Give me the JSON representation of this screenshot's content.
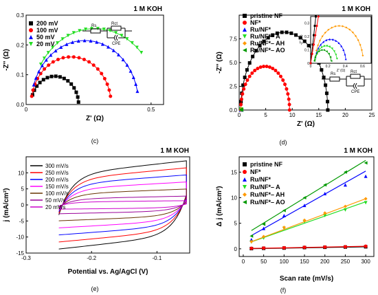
{
  "chart_data": [
    {
      "id": "c",
      "type": "scatter",
      "caption": "(c)",
      "title": "1 M KOH",
      "xlabel": "Z' (Ω)",
      "ylabel": "-Z'' (Ω)",
      "xlim": [
        0,
        0.55
      ],
      "ylim": [
        0,
        0.3
      ],
      "xticks": [
        0,
        0.5
      ],
      "yticks": [
        0.0,
        0.1,
        0.2,
        0.3
      ],
      "xtick_labels": [
        "0",
        "0.5"
      ],
      "ytick_labels": [
        "0.0",
        "0.1",
        "0.2",
        "0.3"
      ],
      "legend_position": "top-left",
      "circuit": {
        "r1": "Rs",
        "r2": "Rct",
        "c": "CPE"
      },
      "series": [
        {
          "name": "200 mV",
          "color": "#000000",
          "marker": "square",
          "arc": {
            "x0": 0.02,
            "r": 0.095,
            "start": 20,
            "end": 175,
            "n": 16,
            "cut": 0.22
          }
        },
        {
          "name": "100 mV",
          "color": "#ff0000",
          "marker": "circle",
          "arc": {
            "x0": 0.02,
            "r": 0.16,
            "start": 10,
            "end": 170,
            "n": 22,
            "cut": 0.4
          }
        },
        {
          "name": "50 mV",
          "color": "#0000ff",
          "marker": "triangle-up",
          "arc": {
            "x0": 0.02,
            "r": 0.215,
            "start": 18,
            "end": 168,
            "n": 24,
            "cut": 0.45
          }
        },
        {
          "name": "20 mV",
          "color": "#22dd22",
          "marker": "triangle-down",
          "arc": {
            "x0": 0.02,
            "r": 0.255,
            "start": 32,
            "end": 170,
            "n": 26,
            "cut": 0.47
          }
        }
      ]
    },
    {
      "id": "d",
      "type": "scatter",
      "caption": "(d)",
      "title": "1 M KOH",
      "xlabel": "Z' (Ω)",
      "ylabel": "-Z'' (Ω)",
      "xlim": [
        0,
        25
      ],
      "ylim": [
        0,
        10
      ],
      "xticks": [
        0,
        5,
        10,
        15,
        20,
        25
      ],
      "yticks": [
        0.0,
        2.5,
        5.0,
        7.5
      ],
      "xtick_labels": [
        "0",
        "5",
        "10",
        "15",
        "20",
        "25"
      ],
      "ytick_labels": [
        "0.0",
        "2.5",
        "5.0",
        "7.5"
      ],
      "legend_position": "top-left",
      "circuit": {
        "r1": "Rs",
        "r2": "Rct",
        "c": "CPE"
      },
      "series": [
        {
          "name": "pristine NF",
          "color": "#000000",
          "marker": "square",
          "arc": {
            "x0": 0.3,
            "r": 8.2,
            "start": 0,
            "end": 180,
            "n": 30
          }
        },
        {
          "name": "NF*",
          "color": "#ff0000",
          "marker": "circle",
          "arc": {
            "x0": 0.3,
            "r": 4.6,
            "start": 0,
            "end": 180,
            "n": 26
          }
        },
        {
          "name": "Ru/NF*",
          "color": "#0000ff",
          "marker": "triangle-up",
          "arc": {
            "x0": 0.3,
            "r": 0.1,
            "start": 0,
            "end": 180,
            "n": 4
          }
        },
        {
          "name": "Ru/NF*– A",
          "color": "#22dd22",
          "marker": "triangle-down",
          "arc": {
            "x0": 0.3,
            "r": 0.1,
            "start": 0,
            "end": 180,
            "n": 4
          }
        },
        {
          "name": "Ru/NF*– AH",
          "color": "#ff9900",
          "marker": "diamond",
          "arc": {
            "x0": 0.3,
            "r": 0.12,
            "start": 0,
            "end": 180,
            "n": 4
          }
        },
        {
          "name": "Ru/NF*– AO",
          "color": "#009900",
          "marker": "triangle-left",
          "arc": {
            "x0": 0.3,
            "r": 0.09,
            "start": 0,
            "end": 180,
            "n": 4
          }
        }
      ],
      "inset": {
        "xlabel": "Z' (Ω)",
        "ylabel": "-Z'' (Ω)",
        "xlim": [
          0,
          0.7
        ],
        "ylim": [
          0,
          0.35
        ],
        "xticks": [
          0,
          0.2,
          0.4,
          0.6
        ],
        "yticks": [
          0,
          0.1,
          0.2,
          0.3
        ],
        "xtick_labels": [
          "0",
          "0.2",
          "0.4",
          "0.6"
        ],
        "ytick_labels": [
          "0",
          "0.1",
          "0.2",
          "0.3"
        ],
        "arcs": [
          {
            "color": "#0000ff",
            "marker": "triangle-up",
            "x0": 0.05,
            "r": 0.18,
            "start": 15,
            "end": 170,
            "n": 14
          },
          {
            "color": "#22dd22",
            "marker": "triangle-down",
            "x0": 0.05,
            "r": 0.13,
            "start": 10,
            "end": 165,
            "n": 12
          },
          {
            "color": "#ff9900",
            "marker": "diamond",
            "x0": 0.05,
            "r": 0.28,
            "start": 20,
            "end": 168,
            "n": 18
          },
          {
            "color": "#009900",
            "marker": "triangle-left",
            "x0": 0.04,
            "r": 0.1,
            "start": 10,
            "end": 170,
            "n": 10
          }
        ],
        "steep": [
          {
            "color": "#000000",
            "marker": "square",
            "x1": 0.06,
            "y1": 0.35
          },
          {
            "color": "#ff0000",
            "marker": "circle",
            "x1": 0.09,
            "y1": 0.35
          }
        ]
      }
    },
    {
      "id": "e",
      "type": "line",
      "caption": "(e)",
      "title": "1 M KOH",
      "xlabel": "Potential vs. Ag/AgCl (V)",
      "ylabel": "j (mA/cm²)",
      "xlim": [
        -0.3,
        -0.05
      ],
      "ylim": [
        -15,
        15
      ],
      "xticks": [
        -0.3,
        -0.2,
        -0.1
      ],
      "yticks": [
        -15,
        -10,
        -5,
        0,
        5,
        10
      ],
      "xtick_labels": [
        "-0.3",
        "-0.2",
        "-0.1"
      ],
      "ytick_labels": [
        "-15",
        "-10",
        "-5",
        "0",
        "5",
        "10"
      ],
      "legend_position": "top-left",
      "series": [
        {
          "name": "300 mV/s",
          "color": "#000000",
          "half_height": 12.5
        },
        {
          "name": "250 mV/s",
          "color": "#ff0000",
          "half_height": 10.5
        },
        {
          "name": "200 mV/s",
          "color": "#0000ff",
          "half_height": 8.5
        },
        {
          "name": "150 mV/s",
          "color": "#ff00ff",
          "half_height": 6.5
        },
        {
          "name": "100 mV/s",
          "color": "#663300",
          "half_height": 4.5
        },
        {
          "name": "50 mV/s",
          "color": "#990099",
          "half_height": 2.5
        },
        {
          "name": "20 mV/s",
          "color": "#cc00cc",
          "half_height": 1.2
        }
      ]
    },
    {
      "id": "f",
      "type": "scatter",
      "caption": "(f)",
      "title": "1 M KOH",
      "xlabel": "Scan rate (mV/s)",
      "ylabel": "Δ j (mA/cm²)",
      "xlim": [
        -10,
        320
      ],
      "ylim": [
        -1.5,
        18
      ],
      "xticks": [
        0,
        50,
        100,
        150,
        200,
        250,
        300
      ],
      "yticks": [
        0,
        5,
        10,
        15
      ],
      "xtick_labels": [
        "0",
        "50",
        "100",
        "150",
        "200",
        "250",
        "300"
      ],
      "ytick_labels": [
        "0",
        "5",
        "10",
        "15"
      ],
      "legend_position": "top-left",
      "x": [
        20,
        50,
        100,
        150,
        200,
        250,
        300
      ],
      "series": [
        {
          "name": "pristine NF",
          "color": "#000000",
          "marker": "square",
          "values": [
            0.05,
            0.1,
            0.15,
            0.25,
            0.3,
            0.35,
            0.4
          ],
          "fit": [
            0.0,
            0.0013
          ]
        },
        {
          "name": "NF*",
          "color": "#ff0000",
          "marker": "circle",
          "values": [
            0.1,
            0.15,
            0.2,
            0.3,
            0.35,
            0.4,
            0.5
          ],
          "fit": [
            0.05,
            0.0015
          ]
        },
        {
          "name": "Ru/NF*",
          "color": "#0000ff",
          "marker": "triangle-up",
          "values": [
            1.8,
            4.0,
            6.5,
            8.5,
            10.8,
            12.5,
            14.2
          ],
          "fit": [
            1.7,
            0.045
          ]
        },
        {
          "name": "Ru/NF*– A",
          "color": "#22dd22",
          "marker": "triangle-down",
          "values": [
            1.3,
            2.1,
            4.0,
            5.3,
            6.5,
            7.6,
            9.0
          ],
          "fit": [
            0.8,
            0.028
          ]
        },
        {
          "name": "Ru/NF*– AH",
          "color": "#ff9900",
          "marker": "diamond",
          "values": [
            1.4,
            2.4,
            4.2,
            5.6,
            7.0,
            8.3,
            9.8
          ],
          "fit": [
            0.8,
            0.03
          ]
        },
        {
          "name": "Ru/NF*– AO",
          "color": "#009900",
          "marker": "triangle-left",
          "values": [
            2.5,
            4.8,
            7.5,
            10.0,
            12.5,
            15.0,
            16.8
          ],
          "fit": [
            2.6,
            0.049
          ]
        }
      ]
    }
  ]
}
